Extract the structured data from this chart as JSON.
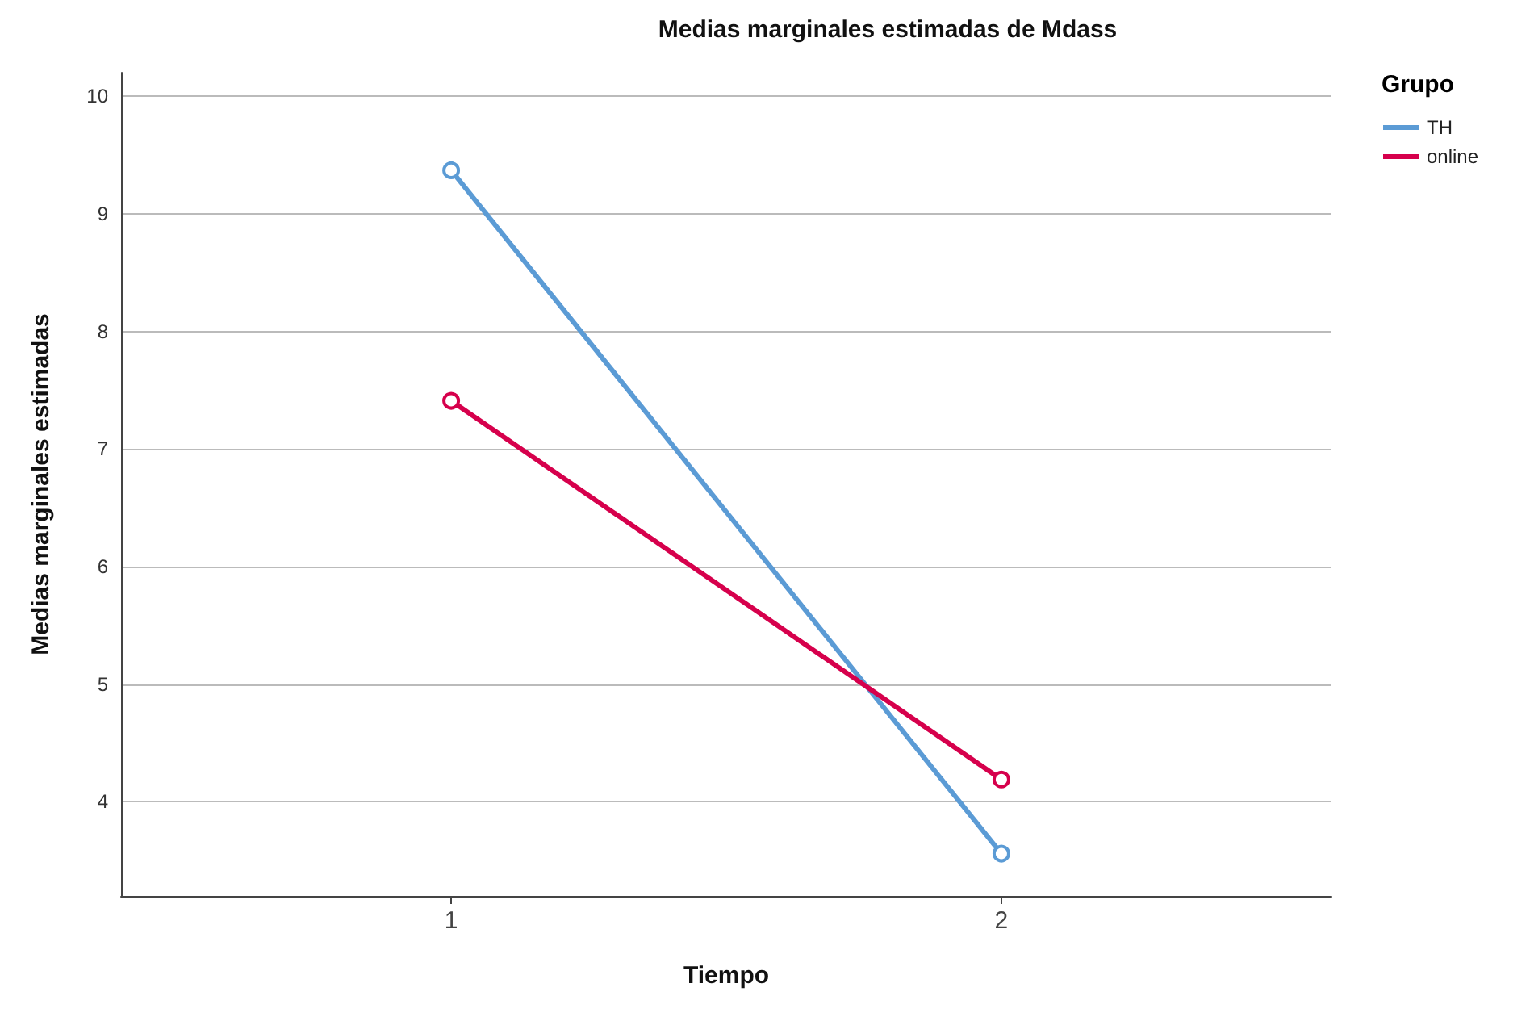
{
  "chart_data": {
    "type": "line",
    "title": "Medias marginales estimadas de Mdass",
    "xlabel": "Tiempo",
    "ylabel": "Medias marginales estimadas",
    "legend_title": "Grupo",
    "x": [
      1,
      2
    ],
    "xlim": [
      0.4,
      2.6
    ],
    "xticks": [
      1,
      2
    ],
    "ylim": [
      3.2,
      10.2
    ],
    "yticks": [
      4,
      5,
      6,
      7,
      8,
      9,
      10
    ],
    "series": [
      {
        "name": "TH",
        "color": "#5b9bd5",
        "values": [
          9.37,
          3.56
        ]
      },
      {
        "name": "online",
        "color": "#d6004c",
        "values": [
          7.41,
          4.19
        ]
      }
    ],
    "grid": "y",
    "legend": "top right",
    "marker": "circle",
    "line_style": "solid"
  }
}
